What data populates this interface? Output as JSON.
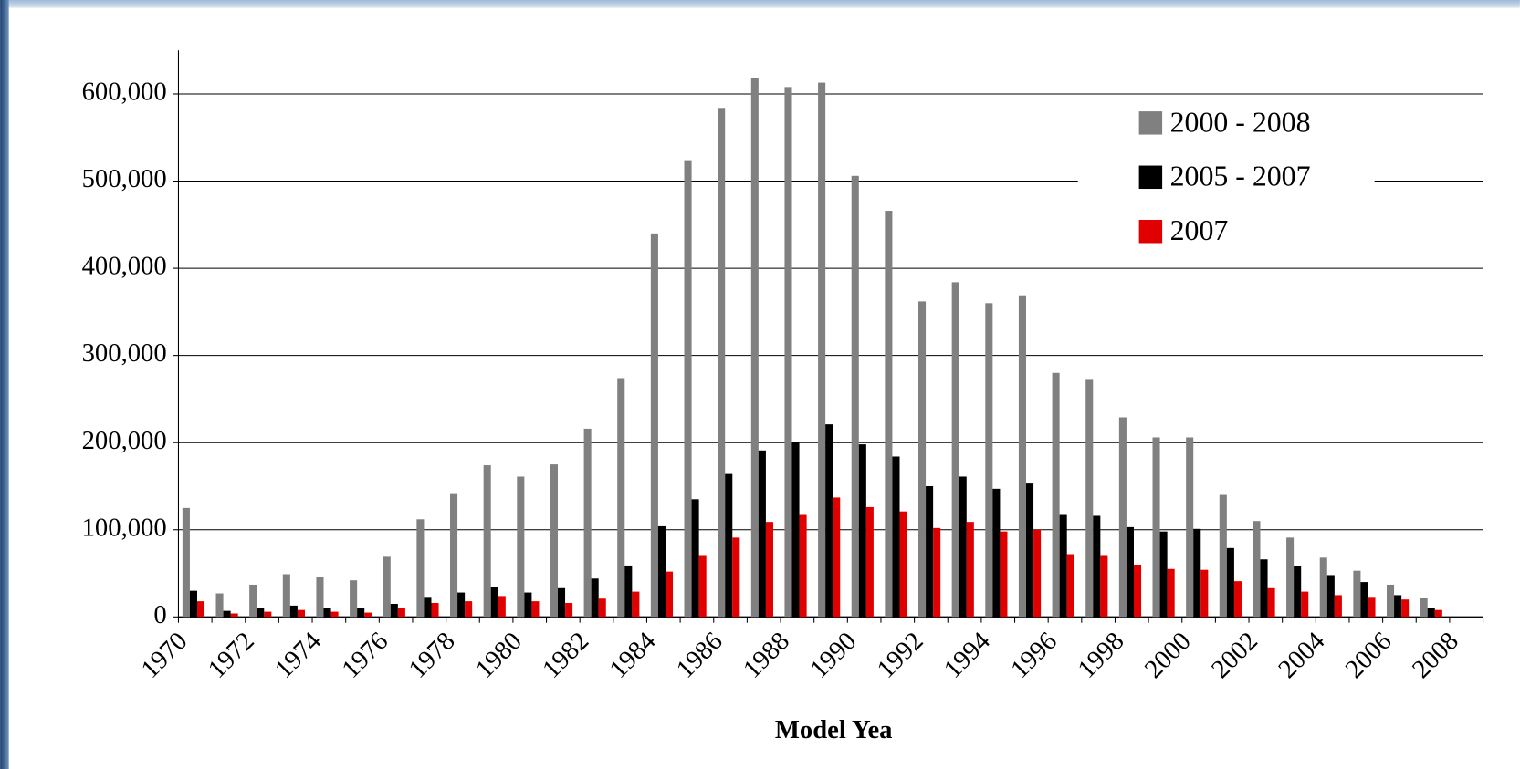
{
  "chart_data": {
    "type": "bar",
    "x_label": "Model Yea",
    "categories": [
      "1970",
      null,
      "1972",
      null,
      "1974",
      null,
      "1976",
      null,
      "1978",
      null,
      "1980",
      null,
      "1982",
      null,
      "1984",
      null,
      "1986",
      null,
      "1988",
      null,
      "1990",
      null,
      "1992",
      null,
      "1994",
      null,
      "1996",
      null,
      "1998",
      null,
      "2000",
      null,
      "2002",
      null,
      "2004",
      null,
      "2006",
      null,
      "2008"
    ],
    "series": [
      {
        "name": "2000 - 2008",
        "color": "#808080",
        "values": [
          125000,
          27000,
          37000,
          49000,
          46000,
          42000,
          69000,
          112000,
          142000,
          174000,
          161000,
          175000,
          216000,
          274000,
          440000,
          524000,
          584000,
          618000,
          608000,
          613000,
          506000,
          466000,
          362000,
          384000,
          360000,
          369000,
          280000,
          272000,
          229000,
          206000,
          206000,
          140000,
          110000,
          91000,
          68000,
          53000,
          37000,
          22000,
          null
        ]
      },
      {
        "name": "2005 - 2007",
        "color": "#000000",
        "values": [
          30000,
          7000,
          10000,
          13000,
          10000,
          10000,
          15000,
          23000,
          28000,
          34000,
          28000,
          33000,
          44000,
          59000,
          104000,
          135000,
          164000,
          191000,
          200000,
          221000,
          198000,
          184000,
          150000,
          161000,
          147000,
          153000,
          117000,
          116000,
          103000,
          98000,
          101000,
          79000,
          66000,
          58000,
          48000,
          40000,
          25000,
          10000,
          null
        ]
      },
      {
        "name": "2007",
        "color": "#e00000",
        "values": [
          18000,
          4000,
          6000,
          8000,
          6000,
          5000,
          10000,
          16000,
          18000,
          24000,
          18000,
          16000,
          21000,
          29000,
          52000,
          71000,
          91000,
          109000,
          117000,
          137000,
          126000,
          121000,
          102000,
          109000,
          98000,
          100000,
          72000,
          71000,
          60000,
          55000,
          54000,
          41000,
          33000,
          29000,
          25000,
          23000,
          20000,
          8000,
          null
        ]
      }
    ],
    "ylim": [
      0,
      650000
    ],
    "yticks": [
      0,
      {
        "value": 100000,
        "label": "100,000"
      },
      {
        "value": 200000,
        "label": "200,000"
      },
      {
        "value": 300000,
        "label": "300,000"
      },
      {
        "value": 400000,
        "label": "400,000"
      },
      {
        "value": 500000,
        "label": "500,000"
      },
      {
        "value": 600000,
        "label": "600,000"
      }
    ],
    "grid": true,
    "legend": "upper right"
  }
}
